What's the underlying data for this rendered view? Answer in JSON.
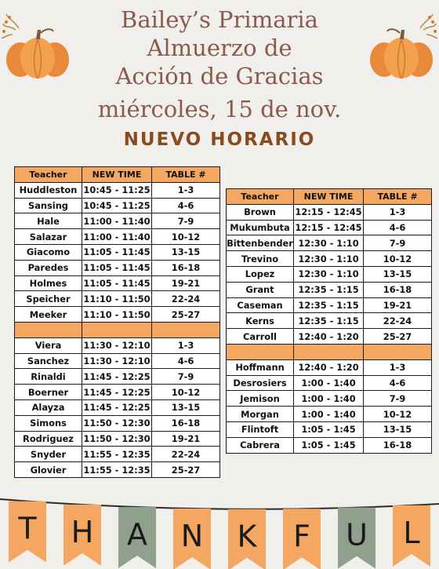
{
  "title": {
    "line1": "Bailey’s Primaria",
    "line2": "Almuerzo de",
    "line3": "Acción de Gracias",
    "line4": "miércoles, 15 de nov."
  },
  "subtitle": "NUEVO HORARIO",
  "headers": {
    "teacher": "Teacher",
    "time": "NEW TIME",
    "table": "TABLE #"
  },
  "left_table": {
    "group1": [
      {
        "teacher": "Huddleston",
        "time": "10:45 - 11:25",
        "table": "1-3"
      },
      {
        "teacher": "Sansing",
        "time": "10:45 - 11:25",
        "table": "4-6"
      },
      {
        "teacher": "Hale",
        "time": "11:00 - 11:40",
        "table": "7-9"
      },
      {
        "teacher": "Salazar",
        "time": "11:00 - 11:40",
        "table": "10-12"
      },
      {
        "teacher": "Giacomo",
        "time": "11:05 - 11:45",
        "table": "13-15"
      },
      {
        "teacher": "Paredes",
        "time": "11:05 - 11:45",
        "table": "16-18"
      },
      {
        "teacher": "Holmes",
        "time": "11:05 - 11:45",
        "table": "19-21"
      },
      {
        "teacher": "Speicher",
        "time": "11:10 - 11:50",
        "table": "22-24"
      },
      {
        "teacher": "Meeker",
        "time": "11:10 - 11:50",
        "table": "25-27"
      }
    ],
    "group2": [
      {
        "teacher": "Viera",
        "time": "11:30 - 12:10",
        "table": "1-3"
      },
      {
        "teacher": "Sanchez",
        "time": "11:30 - 12:10",
        "table": "4-6"
      },
      {
        "teacher": "Rinaldi",
        "time": "11:45 - 12:25",
        "table": "7-9"
      },
      {
        "teacher": "Boerner",
        "time": "11:45 - 12:25",
        "table": "10-12"
      },
      {
        "teacher": "Alayza",
        "time": "11:45 - 12:25",
        "table": "13-15"
      },
      {
        "teacher": "Simons",
        "time": "11:50 - 12:30",
        "table": "16-18"
      },
      {
        "teacher": "Rodriguez",
        "time": "11:50 - 12:30",
        "table": "19-21"
      },
      {
        "teacher": "Snyder",
        "time": "11:55 - 12:35",
        "table": "22-24"
      },
      {
        "teacher": "Glovier",
        "time": "11:55 - 12:35",
        "table": "25-27"
      }
    ]
  },
  "right_table": {
    "group1": [
      {
        "teacher": "Brown",
        "time": "12:15 - 12:45",
        "table": "1-3"
      },
      {
        "teacher": "Mukumbuta",
        "time": "12:15 - 12:45",
        "table": "4-6"
      },
      {
        "teacher": "Bittenbender",
        "time": "12:30 - 1:10",
        "table": "7-9"
      },
      {
        "teacher": "Trevino",
        "time": "12:30 - 1:10",
        "table": "10-12"
      },
      {
        "teacher": "Lopez",
        "time": "12:30 - 1:10",
        "table": "13-15"
      },
      {
        "teacher": "Grant",
        "time": "12:35 - 1:15",
        "table": "16-18"
      },
      {
        "teacher": "Caseman",
        "time": "12:35 - 1:15",
        "table": "19-21"
      },
      {
        "teacher": "Kerns",
        "time": "12:35 - 1:15",
        "table": "22-24"
      },
      {
        "teacher": "Carroll",
        "time": "12:40 - 1:20",
        "table": "25-27"
      }
    ],
    "group2": [
      {
        "teacher": "Hoffmann",
        "time": "12:40 - 1:20",
        "table": "1-3"
      },
      {
        "teacher": "Desrosiers",
        "time": "1:00 - 1:40",
        "table": "4-6"
      },
      {
        "teacher": "Jemison",
        "time": "1:00 - 1:40",
        "table": "7-9"
      },
      {
        "teacher": "Morgan",
        "time": "1:00 - 1:40",
        "table": "10-12"
      },
      {
        "teacher": "Flintoft",
        "time": "1:05 - 1:45",
        "table": "13-15"
      },
      {
        "teacher": "Cabrera",
        "time": "1:05 - 1:45",
        "table": "16-18"
      }
    ]
  },
  "banner": {
    "letters": [
      "T",
      "H",
      "A",
      "N",
      "K",
      "F",
      "U",
      "L"
    ],
    "colors": [
      "#f4a760",
      "#f4a760",
      "#8fa08c",
      "#f4a760",
      "#f4a760",
      "#f4a760",
      "#8fa08c",
      "#f4a760"
    ]
  },
  "colors": {
    "header_orange": "#f4a760",
    "title_brown": "#8a5a4a",
    "subtitle_brown": "#8a4a1f",
    "sage": "#8fa08c"
  },
  "icons": {
    "left_decoration": "pumpkin-icon",
    "right_decoration": "pumpkin-icon"
  }
}
